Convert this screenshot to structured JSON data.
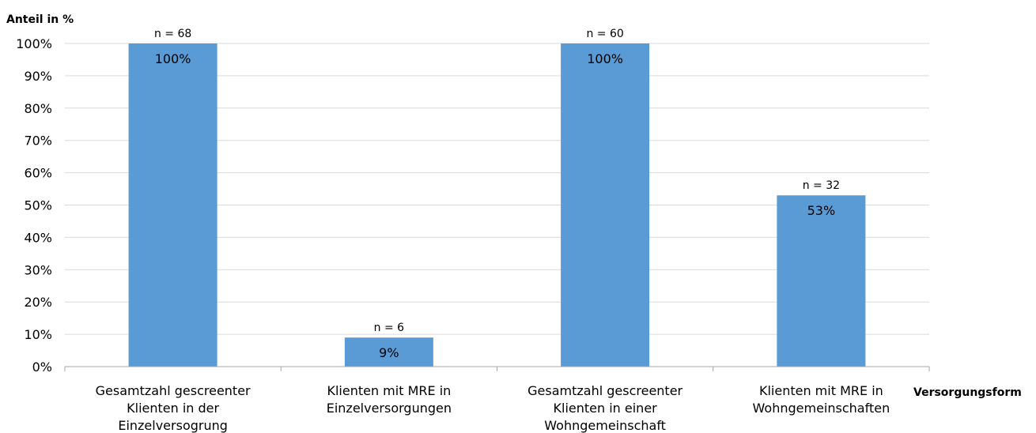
{
  "chart_data": {
    "type": "bar",
    "ylabel": "Anteil in %",
    "xlabel": "Versorgungsform",
    "ylim": [
      0,
      100
    ],
    "yticks": [
      "0%",
      "10%",
      "20%",
      "30%",
      "40%",
      "50%",
      "60%",
      "70%",
      "80%",
      "90%",
      "100%"
    ],
    "grid": true,
    "categories": [
      [
        "Gesamtzahl gescreenter",
        "Klienten in der",
        "Einzelversogrung"
      ],
      [
        "Klienten mit MRE in",
        "Einzelversorgungen"
      ],
      [
        "Gesamtzahl gescreenter",
        "Klienten in einer",
        "Wohngemeinschaft"
      ],
      [
        "Klienten mit MRE in",
        "Wohngemeinschaften"
      ]
    ],
    "values": [
      100,
      9,
      100,
      53
    ],
    "value_labels": [
      "100%",
      "9%",
      "100%",
      "53%"
    ],
    "n_labels": [
      "n = 68",
      "n = 6",
      "n = 60",
      "n = 32"
    ],
    "bar_color": "#5b9bd5",
    "grid_color": "#d9d9d9",
    "axis_color": "#a6a6a6"
  }
}
